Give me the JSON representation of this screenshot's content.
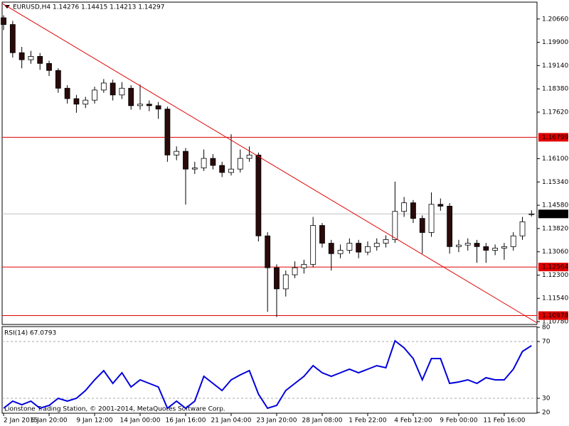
{
  "chart_data": [
    {
      "type": "candlestick",
      "title": "EURUSD,H4  1.14276 1.14415 1.14213 1.14297",
      "watermark": "Lionstone Trading Station, © 2001-2014, MetaQuotes Software Corp.",
      "xlim": [
        -0.16,
        58.6
      ],
      "xticks": [
        {
          "value": 0,
          "label": "2 Jan 2015"
        },
        {
          "value": 5,
          "label": "6 Jan 20:00"
        },
        {
          "value": 10,
          "label": "9 Jan 12:00"
        },
        {
          "value": 15,
          "label": "14 Jan 00:00"
        },
        {
          "value": 20,
          "label": "16 Jan 16:00"
        },
        {
          "value": 25,
          "label": "21 Jan 04:00"
        },
        {
          "value": 30,
          "label": "23 Jan 20:00"
        },
        {
          "value": 35,
          "label": "28 Jan 08:00"
        },
        {
          "value": 40,
          "label": "1 Feb 22:00"
        },
        {
          "value": 45,
          "label": "4 Feb 12:00"
        },
        {
          "value": 50,
          "label": "9 Feb 00:00"
        },
        {
          "value": 55,
          "label": "11 Feb 16:00"
        }
      ],
      "ylim": [
        1.10688,
        1.21211
      ],
      "yticks": [
        {
          "value": 1.2066,
          "label": "1.20660"
        },
        {
          "value": 1.199,
          "label": "1.19900"
        },
        {
          "value": 1.1914,
          "label": "1.19140"
        },
        {
          "value": 1.1838,
          "label": "1.18380"
        },
        {
          "value": 1.1762,
          "label": "1.17620"
        },
        {
          "value": 1.161,
          "label": "1.16100"
        },
        {
          "value": 1.1534,
          "label": "1.15340"
        },
        {
          "value": 1.1458,
          "label": "1.14580"
        },
        {
          "value": 1.1382,
          "label": "1.13820"
        },
        {
          "value": 1.1306,
          "label": "1.13060"
        },
        {
          "value": 1.123,
          "label": "1.12300"
        },
        {
          "value": 1.1154,
          "label": "1.11540"
        },
        {
          "value": 1.1078,
          "label": "1.10780"
        }
      ],
      "up_color": "#ffffff",
      "down_color": "#2a0a0a",
      "wick_color": "#000000",
      "open": [
        1.207,
        1.2048,
        1.1956,
        1.1933,
        1.1944,
        1.1921,
        1.1898,
        1.184,
        1.1806,
        1.1788,
        1.1801,
        1.1834,
        1.1857,
        1.1818,
        1.184,
        1.1783,
        1.1788,
        1.1783,
        1.1772,
        1.1622,
        1.1634,
        1.1576,
        1.158,
        1.1611,
        1.1588,
        1.1565,
        1.1576,
        1.1611,
        1.1622,
        1.1358,
        1.1254,
        1.1185,
        1.1231,
        1.1254,
        1.1265,
        1.1392,
        1.1334,
        1.13,
        1.1311,
        1.1334,
        1.1305,
        1.1323,
        1.1334,
        1.1346,
        1.1438,
        1.1466,
        1.1415,
        1.1369,
        1.1461,
        1.1455,
        1.1323,
        1.1328,
        1.1334,
        1.1323,
        1.1311,
        1.1318,
        1.1323,
        1.1358,
        1.14276
      ],
      "high": [
        1.2078,
        1.206,
        1.1975,
        1.1962,
        1.1955,
        1.193,
        1.1905,
        1.185,
        1.1818,
        1.1812,
        1.1845,
        1.187,
        1.1868,
        1.186,
        1.185,
        1.1852,
        1.18,
        1.1795,
        1.178,
        1.165,
        1.1645,
        1.16,
        1.164,
        1.1625,
        1.16,
        1.169,
        1.164,
        1.165,
        1.163,
        1.137,
        1.1265,
        1.1245,
        1.1275,
        1.128,
        1.142,
        1.14,
        1.1345,
        1.133,
        1.135,
        1.1345,
        1.134,
        1.135,
        1.136,
        1.1535,
        1.1485,
        1.1475,
        1.1425,
        1.15,
        1.148,
        1.1465,
        1.1345,
        1.135,
        1.1345,
        1.1335,
        1.133,
        1.1335,
        1.137,
        1.142,
        1.14415
      ],
      "low": [
        1.203,
        1.194,
        1.1905,
        1.192,
        1.19,
        1.188,
        1.1825,
        1.179,
        1.176,
        1.1775,
        1.179,
        1.1825,
        1.18,
        1.1805,
        1.177,
        1.177,
        1.1765,
        1.174,
        1.16,
        1.1605,
        1.146,
        1.156,
        1.157,
        1.1575,
        1.155,
        1.1555,
        1.1565,
        1.16,
        1.134,
        1.111,
        1.1093,
        1.116,
        1.122,
        1.1235,
        1.1255,
        1.132,
        1.1245,
        1.1285,
        1.13,
        1.1285,
        1.1295,
        1.131,
        1.132,
        1.1335,
        1.142,
        1.14,
        1.13,
        1.1355,
        1.144,
        1.13,
        1.1305,
        1.131,
        1.127,
        1.127,
        1.1295,
        1.128,
        1.131,
        1.1345,
        1.14213
      ],
      "close": [
        1.2048,
        1.1956,
        1.1933,
        1.1944,
        1.1921,
        1.1898,
        1.184,
        1.1806,
        1.1788,
        1.1801,
        1.1834,
        1.1857,
        1.1818,
        1.184,
        1.1783,
        1.1788,
        1.1783,
        1.1772,
        1.1622,
        1.1634,
        1.1576,
        1.158,
        1.1611,
        1.1588,
        1.1565,
        1.1576,
        1.1611,
        1.1622,
        1.1358,
        1.1254,
        1.1185,
        1.1231,
        1.1254,
        1.1265,
        1.1392,
        1.1334,
        1.13,
        1.1311,
        1.1334,
        1.1305,
        1.1323,
        1.1334,
        1.1346,
        1.1438,
        1.1466,
        1.1415,
        1.1369,
        1.1461,
        1.1455,
        1.1323,
        1.1328,
        1.1334,
        1.1323,
        1.1311,
        1.1318,
        1.1323,
        1.1358,
        1.1404,
        1.14297
      ],
      "levels": [
        {
          "value": 1.16799,
          "color": "#e00000"
        },
        {
          "value": 1.12564,
          "color": "#e00000"
        },
        {
          "value": 1.10978,
          "color": "#e00000"
        }
      ],
      "current_price": {
        "value": 1.14297,
        "color": "#c0c0c0"
      },
      "trendline": {
        "x": [
          -0.16,
          58.6
        ],
        "y": [
          1.2117,
          1.1074
        ],
        "color": "#e00000"
      }
    },
    {
      "type": "line",
      "title": "RSI(14) 67.0793",
      "color": "#0000dd",
      "xlim": [
        -0.16,
        58.6
      ],
      "ylim": [
        19.5,
        80.5
      ],
      "yticks": [
        80,
        70,
        30,
        20
      ],
      "levels": [
        70,
        30
      ],
      "values": [
        23,
        28,
        25.5,
        28,
        23,
        25,
        30,
        28,
        30,
        35.5,
        43,
        49.5,
        40.5,
        48,
        38,
        43,
        40.5,
        38,
        23,
        28,
        23,
        28,
        45.5,
        40.5,
        35.5,
        43,
        46.5,
        49.5,
        33,
        23,
        25,
        35.5,
        40.5,
        45.5,
        53,
        48,
        45.5,
        48,
        50.5,
        48,
        50.5,
        53,
        51.5,
        70.5,
        65.5,
        58,
        43,
        58,
        58,
        40.5,
        41.5,
        43,
        40.5,
        44.5,
        43,
        43,
        50.5,
        63,
        67.0793
      ]
    }
  ]
}
